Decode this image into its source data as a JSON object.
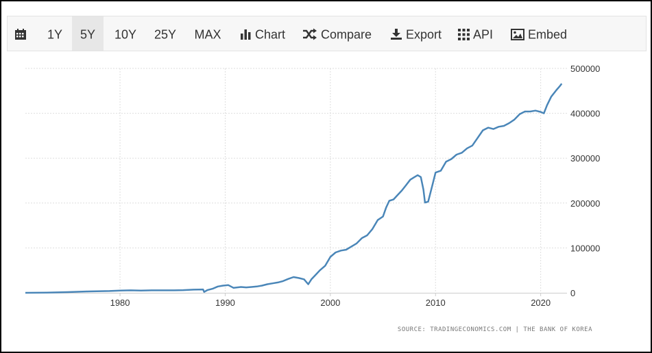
{
  "toolbar": {
    "ranges": [
      "1Y",
      "5Y",
      "10Y",
      "25Y",
      "MAX"
    ],
    "active_range": "5Y",
    "chart_label": "Chart",
    "compare_label": "Compare",
    "export_label": "Export",
    "api_label": "API",
    "embed_label": "Embed"
  },
  "source": "SOURCE: TRADINGECONOMICS.COM | THE BANK OF KOREA",
  "chart_data": {
    "type": "line",
    "title": "",
    "xlabel": "",
    "ylabel": "",
    "xlim": [
      1971,
      2022.5
    ],
    "ylim": [
      0,
      500000
    ],
    "x_ticks": [
      1980,
      1990,
      2000,
      2010,
      2020
    ],
    "y_ticks": [
      0,
      100000,
      200000,
      300000,
      400000,
      500000
    ],
    "y_axis_position": "right",
    "grid": true,
    "line_color": "#4a86b8",
    "series": [
      {
        "points": [
          [
            1971,
            0
          ],
          [
            1973,
            500
          ],
          [
            1975,
            1500
          ],
          [
            1977,
            3000
          ],
          [
            1979,
            4000
          ],
          [
            1980,
            5000
          ],
          [
            1981,
            5500
          ],
          [
            1982,
            5000
          ],
          [
            1983,
            5500
          ],
          [
            1984,
            5500
          ],
          [
            1985,
            5500
          ],
          [
            1986,
            6000
          ],
          [
            1987,
            7000
          ],
          [
            1987.9,
            7500
          ],
          [
            1988,
            2000
          ],
          [
            1988.3,
            6000
          ],
          [
            1988.8,
            9000
          ],
          [
            1989.3,
            14000
          ],
          [
            1989.8,
            16000
          ],
          [
            1990.3,
            17000
          ],
          [
            1990.8,
            11000
          ],
          [
            1991.5,
            13000
          ],
          [
            1992,
            12000
          ],
          [
            1992.5,
            13000
          ],
          [
            1993,
            14000
          ],
          [
            1993.5,
            16000
          ],
          [
            1994,
            19000
          ],
          [
            1994.5,
            21000
          ],
          [
            1995,
            23000
          ],
          [
            1995.5,
            26000
          ],
          [
            1996,
            31000
          ],
          [
            1996.5,
            35000
          ],
          [
            1997,
            33000
          ],
          [
            1997.5,
            30000
          ],
          [
            1997.9,
            19000
          ],
          [
            1998.2,
            30000
          ],
          [
            1998.6,
            40000
          ],
          [
            1999,
            50000
          ],
          [
            1999.5,
            60000
          ],
          [
            2000,
            80000
          ],
          [
            2000.5,
            90000
          ],
          [
            2001,
            94000
          ],
          [
            2001.5,
            96000
          ],
          [
            2002,
            103000
          ],
          [
            2002.5,
            110000
          ],
          [
            2003,
            122000
          ],
          [
            2003.5,
            128000
          ],
          [
            2004,
            142000
          ],
          [
            2004.5,
            162000
          ],
          [
            2005,
            170000
          ],
          [
            2005.3,
            190000
          ],
          [
            2005.6,
            205000
          ],
          [
            2006,
            208000
          ],
          [
            2006.4,
            218000
          ],
          [
            2006.8,
            228000
          ],
          [
            2007.2,
            240000
          ],
          [
            2007.6,
            252000
          ],
          [
            2008,
            258000
          ],
          [
            2008.3,
            262000
          ],
          [
            2008.6,
            258000
          ],
          [
            2008.85,
            230000
          ],
          [
            2009,
            201000
          ],
          [
            2009.3,
            203000
          ],
          [
            2009.7,
            240000
          ],
          [
            2010,
            268000
          ],
          [
            2010.5,
            272000
          ],
          [
            2011,
            292000
          ],
          [
            2011.5,
            298000
          ],
          [
            2012,
            308000
          ],
          [
            2012.5,
            312000
          ],
          [
            2013,
            322000
          ],
          [
            2013.5,
            328000
          ],
          [
            2014,
            345000
          ],
          [
            2014.5,
            362000
          ],
          [
            2015,
            368000
          ],
          [
            2015.5,
            365000
          ],
          [
            2016,
            370000
          ],
          [
            2016.5,
            372000
          ],
          [
            2017,
            378000
          ],
          [
            2017.5,
            386000
          ],
          [
            2018,
            398000
          ],
          [
            2018.5,
            404000
          ],
          [
            2019,
            404000
          ],
          [
            2019.5,
            406000
          ],
          [
            2020,
            403000
          ],
          [
            2020.3,
            400000
          ],
          [
            2020.6,
            418000
          ],
          [
            2021,
            437000
          ],
          [
            2021.5,
            452000
          ],
          [
            2021.8,
            460000
          ],
          [
            2022,
            466000
          ]
        ]
      }
    ]
  }
}
